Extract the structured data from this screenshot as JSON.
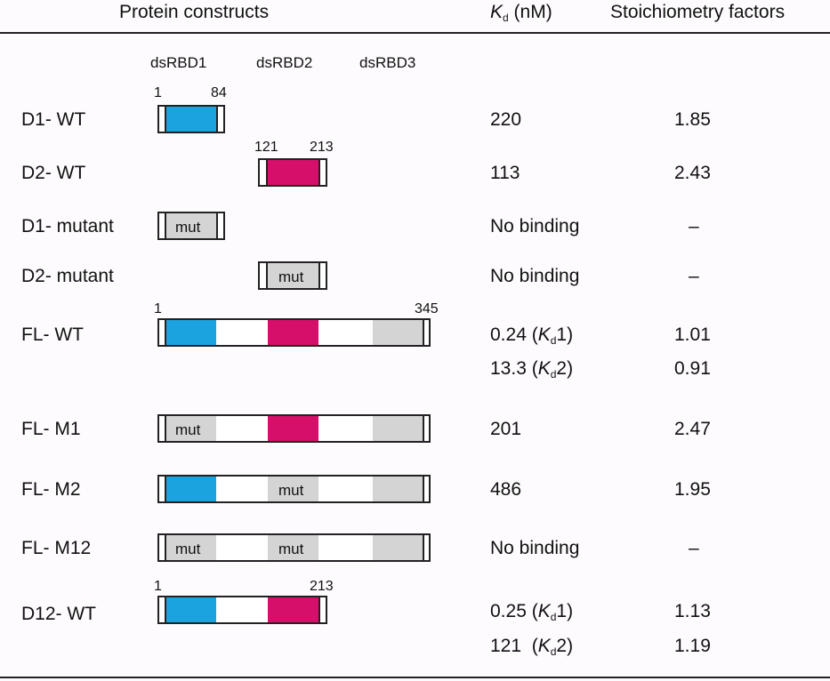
{
  "header": {
    "protein_constructs": "Protein constructs",
    "kd_symbol": "K",
    "kd_sub": "d",
    "kd_unit": "(nM)",
    "stoich": "Stoichiometry factors"
  },
  "domains": {
    "d1": "dsRBD1",
    "d2": "dsRBD2",
    "d3": "dsRBD3"
  },
  "mut_label": "mut",
  "colors": {
    "dsRBD1": "#1aa3de",
    "dsRBD2": "#d6106a",
    "dsRBD3": "#d4d4d4",
    "mutant": "#d4d4d4"
  },
  "rows": {
    "d1wt": {
      "name": "D1- WT",
      "start": "1",
      "end": "84",
      "kd": "220",
      "stoich": "1.85"
    },
    "d2wt": {
      "name": "D2- WT",
      "start": "121",
      "end": "213",
      "kd": "113",
      "stoich": "2.43"
    },
    "d1mut": {
      "name": "D1- mutant",
      "kd": "No binding",
      "stoich": "–"
    },
    "d2mut": {
      "name": "D2- mutant",
      "kd": "No binding",
      "stoich": "–"
    },
    "flwt": {
      "name": "FL- WT",
      "start": "1",
      "end": "345",
      "kd1_val": "0.24",
      "kd1_tag": "1",
      "kd2_val": "13.3",
      "kd2_tag": "2",
      "stoich1": "1.01",
      "stoich2": "0.91"
    },
    "flm1": {
      "name": "FL- M1",
      "kd": "201",
      "stoich": "2.47"
    },
    "flm2": {
      "name": "FL- M2",
      "kd": "486",
      "stoich": "1.95"
    },
    "flm12": {
      "name": "FL- M12",
      "kd": "No binding",
      "stoich": "–"
    },
    "d12wt": {
      "name": "D12- WT",
      "start": "1",
      "end": "213",
      "kd1_val": "0.25",
      "kd1_tag": "1",
      "kd2_val": "121",
      "kd2_tag": "2",
      "stoich1": "1.13",
      "stoich2": "1.19"
    }
  }
}
